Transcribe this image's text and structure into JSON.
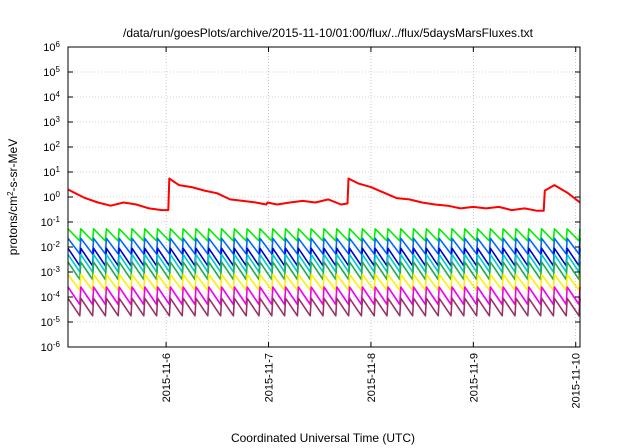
{
  "chart_data": {
    "type": "line",
    "title": "/data/run/goesPlots/archive/2015-11-10/01:00/flux/../flux/5daysMarsFluxes.txt",
    "xlabel": "Coordinated Universal Time (UTC)",
    "ylabel": "protons/cm²-s-sr-MeV",
    "yscale": "log",
    "ylim_exp": [
      -6,
      6
    ],
    "x_range_days": [
      "2015-11-05T01:00",
      "2015-11-10T01:00"
    ],
    "x_ticks": [
      "2015-11-6",
      "2015-11-7",
      "2015-11-8",
      "2015-11-9",
      "2015-11-10"
    ],
    "y_tick_exponents": [
      -6,
      -5,
      -4,
      -3,
      -2,
      -1,
      0,
      1,
      2,
      3,
      4,
      5,
      6
    ],
    "grid": true,
    "legend": "none",
    "series": [
      {
        "color": "#ff0000",
        "x": [
          "2015-11-05T01:00",
          "2015-11-05T05:00",
          "2015-11-05T08:00",
          "2015-11-05T11:00",
          "2015-11-05T14:00",
          "2015-11-05T17:00",
          "2015-11-05T20:00",
          "2015-11-05T23:00",
          "2015-11-06T00:30",
          "2015-11-06T00:45",
          "2015-11-06T03:00",
          "2015-11-06T06:00",
          "2015-11-06T09:00",
          "2015-11-06T12:00",
          "2015-11-06T15:00",
          "2015-11-06T18:00",
          "2015-11-06T21:00",
          "2015-11-06T23:30",
          "2015-11-06T23:45",
          "2015-11-07T02:00",
          "2015-11-07T05:00",
          "2015-11-07T08:00",
          "2015-11-07T11:00",
          "2015-11-07T14:00",
          "2015-11-07T17:00",
          "2015-11-07T18:30",
          "2015-11-07T18:45",
          "2015-11-07T21:00",
          "2015-11-08T00:00",
          "2015-11-08T03:00",
          "2015-11-08T06:00",
          "2015-11-08T09:00",
          "2015-11-08T12:00",
          "2015-11-08T15:00",
          "2015-11-08T18:00",
          "2015-11-08T21:00",
          "2015-11-09T00:00",
          "2015-11-09T03:00",
          "2015-11-09T06:00",
          "2015-11-09T09:00",
          "2015-11-09T12:00",
          "2015-11-09T15:00",
          "2015-11-09T16:30",
          "2015-11-09T16:45",
          "2015-11-09T19:00",
          "2015-11-09T22:00",
          "2015-11-10T01:00"
        ],
        "values": [
          2.0,
          0.9,
          0.6,
          0.45,
          0.6,
          0.5,
          0.35,
          0.3,
          0.3,
          5.5,
          3.0,
          2.5,
          1.8,
          1.4,
          0.8,
          0.7,
          0.6,
          0.5,
          0.6,
          0.5,
          0.6,
          0.7,
          0.6,
          0.8,
          0.5,
          0.55,
          5.5,
          3.5,
          2.5,
          1.5,
          0.9,
          0.8,
          0.6,
          0.5,
          0.45,
          0.35,
          0.4,
          0.35,
          0.4,
          0.3,
          0.35,
          0.28,
          0.28,
          1.8,
          3.0,
          1.5,
          0.6
        ]
      },
      {
        "color": "#00ee00",
        "base_exp": -1.62,
        "amp_exp": 0.35
      },
      {
        "color": "#0066ff",
        "base_exp": -2.1,
        "amp_exp": 0.45
      },
      {
        "color": "#0000cc",
        "base_exp": -2.55,
        "amp_exp": 0.5
      },
      {
        "color": "#00cccc",
        "base_exp": -2.8,
        "amp_exp": 0.5
      },
      {
        "color": "#22aa55",
        "base_exp": -3.1,
        "amp_exp": 0.5
      },
      {
        "color": "#ffee00",
        "base_exp": -3.55,
        "amp_exp": 0.45
      },
      {
        "color": "#ee00ee",
        "base_exp": -4.1,
        "amp_exp": 0.5
      },
      {
        "color": "#993366",
        "base_exp": -4.55,
        "amp_exp": 0.5
      }
    ]
  }
}
